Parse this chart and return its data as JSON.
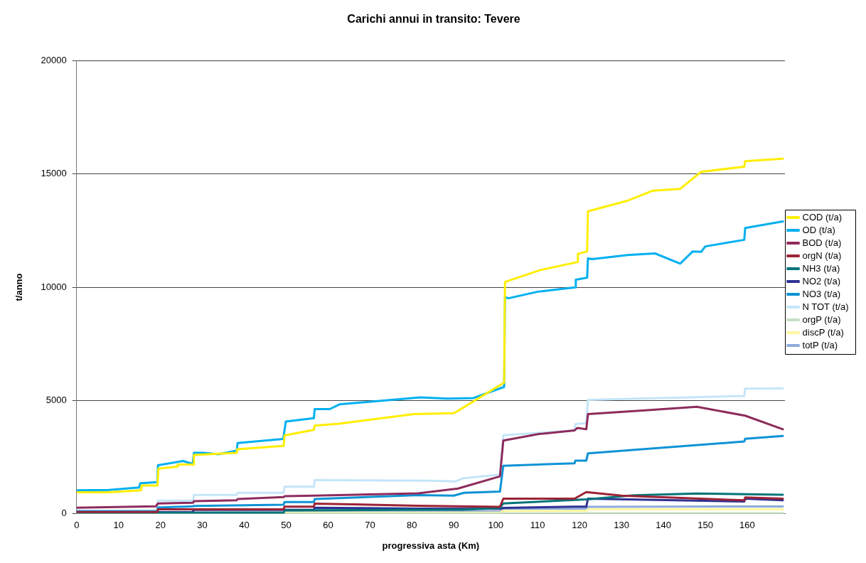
{
  "chart_data": {
    "type": "line",
    "title": "Carichi annui in transito: Tevere",
    "xlabel": "progressiva asta (Km)",
    "ylabel": "t/anno",
    "xlim": [
      0,
      169
    ],
    "xticks": [
      0,
      10,
      20,
      30,
      40,
      50,
      60,
      70,
      80,
      90,
      100,
      110,
      120,
      130,
      140,
      150,
      160
    ],
    "ylim": [
      0,
      20000
    ],
    "yticks": [
      0,
      5000,
      10000,
      15000,
      20000
    ],
    "grid": "y",
    "legend": "right",
    "marker": "none",
    "line_style": "solid",
    "series": [
      {
        "name": "COD (t/a)",
        "color": "#ffee00",
        "x": [
          0,
          7.7,
          15.4,
          15.5,
          19.3,
          19.5,
          24,
          24.1,
          27.9,
          28,
          38.2,
          38.3,
          49.4,
          49.6,
          56.6,
          56.8,
          62.7,
          80.5,
          90,
          91.5,
          102,
          102.2,
          110.5,
          119.5,
          119.6,
          121.8,
          122,
          131.5,
          137.5,
          144,
          149,
          159.3,
          159.5,
          168.5
        ],
        "values": [
          950,
          950,
          1040,
          1250,
          1250,
          1990,
          2080,
          2170,
          2170,
          2600,
          2690,
          2850,
          3000,
          3460,
          3700,
          3890,
          3980,
          4400,
          4440,
          4600,
          5790,
          10230,
          10750,
          11110,
          11470,
          11580,
          13350,
          13820,
          14260,
          14340,
          15090,
          15320,
          15560,
          15670
        ]
      },
      {
        "name": "OD (t/a)",
        "color": "#00b0f0",
        "x": [
          0,
          7.7,
          14.9,
          15.2,
          19.3,
          19.4,
          25.4,
          27.7,
          28,
          30.3,
          33.8,
          38.2,
          38.4,
          49.3,
          49.9,
          56.6,
          56.8,
          60.4,
          62.7,
          82,
          88.5,
          94.7,
          102,
          102.2,
          103,
          110,
          119,
          119.1,
          121.8,
          122,
          123,
          131.5,
          138,
          144,
          147,
          149,
          150,
          159.3,
          159.5,
          168.5
        ],
        "values": [
          1040,
          1050,
          1160,
          1350,
          1400,
          2140,
          2330,
          2200,
          2690,
          2690,
          2630,
          2790,
          3120,
          3300,
          4070,
          4220,
          4620,
          4620,
          4830,
          5140,
          5080,
          5110,
          5600,
          9560,
          9510,
          9800,
          9990,
          10330,
          10420,
          11270,
          11240,
          11420,
          11490,
          11040,
          11580,
          11560,
          11800,
          12090,
          12610,
          12900
        ]
      },
      {
        "name": "BOD (t/a)",
        "color": "#8e2b5c",
        "x": [
          0,
          18.9,
          19.4,
          27.8,
          28,
          38.2,
          38.4,
          49.4,
          49.6,
          56.6,
          81.5,
          91,
          101,
          101.8,
          110.3,
          118.8,
          119.5,
          121.6,
          122,
          135,
          148,
          159.5,
          168.5
        ],
        "values": [
          265,
          330,
          460,
          490,
          560,
          600,
          650,
          735,
          780,
          800,
          906,
          1114,
          1653,
          3230,
          3520,
          3680,
          3790,
          3730,
          4400,
          4560,
          4720,
          4330,
          3730
        ]
      },
      {
        "name": "orgN (t/a)",
        "color": "#9b2335",
        "x": [
          0,
          19.3,
          19.4,
          49.4,
          49.6,
          56.6,
          56.8,
          81.5,
          101,
          101.8,
          118.8,
          121.6,
          130,
          159.3,
          159.5,
          168.5
        ],
        "values": [
          80,
          80,
          200,
          200,
          316,
          316,
          450,
          357,
          306,
          668,
          668,
          958,
          800,
          596,
          720,
          668
        ]
      },
      {
        "name": "NH3 (t/a)",
        "color": "#00747a",
        "x": [
          0,
          49.4,
          49.6,
          81.5,
          92,
          101,
          101.8,
          121.6,
          133,
          148,
          168.5
        ],
        "values": [
          50,
          50,
          150,
          180,
          180,
          253,
          460,
          636,
          820,
          892,
          841
        ]
      },
      {
        "name": "NO2 (t/a)",
        "color": "#2e3192",
        "x": [
          0,
          27.7,
          27.8,
          56.6,
          56.8,
          81.5,
          101,
          101.8,
          118.8,
          121.6,
          122,
          159.3,
          159.5,
          168.5
        ],
        "values": [
          72,
          72,
          174,
          174,
          265,
          232,
          220,
          260,
          317,
          317,
          668,
          543,
          668,
          596
        ]
      },
      {
        "name": "NO3 (t/a)",
        "color": "#0e93d5",
        "x": [
          0,
          19.3,
          19.4,
          27.8,
          28,
          49.4,
          49.6,
          56.6,
          56.8,
          81.5,
          90,
          92.4,
          101,
          101.8,
          118.8,
          119,
          121.6,
          122,
          159.3,
          159.5,
          168.5
        ],
        "values": [
          112,
          112,
          275,
          330,
          350,
          400,
          520,
          520,
          650,
          823,
          800,
          927,
          978,
          2120,
          2230,
          2350,
          2350,
          2670,
          3190,
          3310,
          3440
        ]
      },
      {
        "name": "N TOT (t/a)",
        "color": "#c5e5f8",
        "x": [
          0,
          19.3,
          19.4,
          27.8,
          28,
          38.2,
          38.4,
          49.4,
          49.6,
          56.6,
          56.8,
          85,
          90.5,
          92,
          101,
          101.8,
          118.8,
          119,
          121.6,
          122,
          159.3,
          159.5,
          168.5
        ],
        "values": [
          143,
          143,
          580,
          580,
          835,
          835,
          930,
          930,
          1190,
          1190,
          1490,
          1460,
          1430,
          1560,
          1736,
          3468,
          3680,
          3960,
          4000,
          5025,
          5200,
          5520,
          5540
        ]
      },
      {
        "name": "orgP (t/a)",
        "color": "#c6e0c6",
        "x": [
          0,
          101,
          101.8,
          121.6,
          122,
          168.5
        ],
        "values": [
          10,
          10,
          20,
          20,
          25,
          25
        ]
      },
      {
        "name": "discP (t/a)",
        "color": "#fff7a0",
        "x": [
          0,
          101,
          101.8,
          121.6,
          122,
          168.5
        ],
        "values": [
          50,
          50,
          130,
          130,
          200,
          200
        ]
      },
      {
        "name": "totP (t/a)",
        "color": "#8eaadb",
        "x": [
          0,
          81.5,
          101,
          101.8,
          121.6,
          122,
          168.5
        ],
        "values": [
          40,
          101,
          101,
          220,
          220,
          306,
          327
        ]
      }
    ]
  }
}
